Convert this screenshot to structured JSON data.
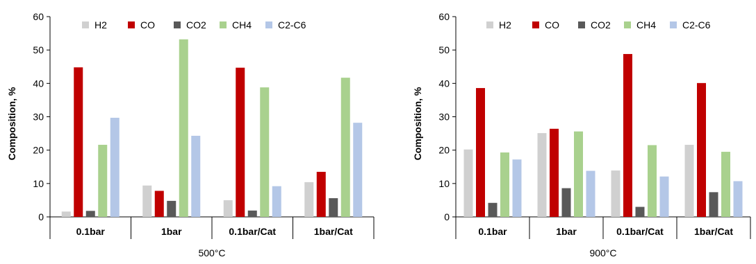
{
  "chart_data": [
    {
      "type": "bar",
      "title": "",
      "categories": [
        "0.1bar",
        "1bar",
        "0.1bar/Cat",
        "1bar/Cat"
      ],
      "series": [
        {
          "name": "H2",
          "color": "#d0d0d0",
          "values": [
            1.6,
            9.4,
            5.0,
            10.4
          ]
        },
        {
          "name": "CO",
          "color": "#c00000",
          "values": [
            44.8,
            7.8,
            44.7,
            13.5
          ]
        },
        {
          "name": "CO2",
          "color": "#595959",
          "values": [
            1.8,
            4.8,
            1.9,
            5.6
          ]
        },
        {
          "name": "CH4",
          "color": "#a9d18e",
          "values": [
            21.6,
            53.2,
            38.8,
            41.7
          ]
        },
        {
          "name": "C2-C6",
          "color": "#b4c7e7",
          "values": [
            29.7,
            24.3,
            9.2,
            28.2
          ]
        }
      ],
      "xlabel": "500°C",
      "ylabel": "Composition, %",
      "ylim": [
        0,
        60
      ],
      "yticks": [
        "0",
        "10",
        "20",
        "30",
        "40",
        "50",
        "60"
      ],
      "legend": "top"
    },
    {
      "type": "bar",
      "title": "",
      "categories": [
        "0.1bar",
        "1bar",
        "0.1bar/Cat",
        "1bar/Cat"
      ],
      "series": [
        {
          "name": "H2",
          "color": "#d0d0d0",
          "values": [
            20.2,
            25.1,
            13.9,
            21.6
          ]
        },
        {
          "name": "CO",
          "color": "#c00000",
          "values": [
            38.6,
            26.4,
            48.8,
            40.1
          ]
        },
        {
          "name": "CO2",
          "color": "#595959",
          "values": [
            4.2,
            8.6,
            3.0,
            7.4
          ]
        },
        {
          "name": "CH4",
          "color": "#a9d18e",
          "values": [
            19.3,
            25.6,
            21.5,
            19.5
          ]
        },
        {
          "name": "C2-C6",
          "color": "#b4c7e7",
          "values": [
            17.2,
            13.8,
            12.1,
            10.7
          ]
        }
      ],
      "xlabel": "900°C",
      "ylabel": "Composition, %",
      "ylim": [
        0,
        60
      ],
      "yticks": [
        "0",
        "10",
        "20",
        "30",
        "40",
        "50",
        "60"
      ],
      "legend": "top"
    }
  ]
}
